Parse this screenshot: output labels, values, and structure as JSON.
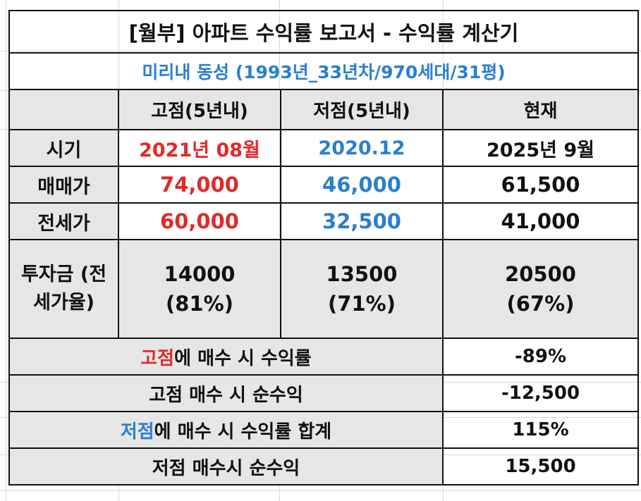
{
  "title": "[월부] 아파트 수익률 보고서 - 수익률 계산기",
  "subtitle": "미리내 동성 (1993년_33년차/970세대/31평)",
  "columns": [
    "",
    "고점(5년내)",
    "저점(5년내)",
    "현재"
  ],
  "rows": {
    "timing": {
      "label": "시기",
      "high": "2021년 08월",
      "low": "2020.12",
      "current": "2025년 9월"
    },
    "sale_price": {
      "label": "매매가",
      "high": "74,000",
      "low": "46,000",
      "current": "61,500"
    },
    "jeonse_price": {
      "label": "전세가",
      "high": "60,000",
      "low": "32,500",
      "current": "41,000"
    },
    "investment": {
      "label": "투자금 (전세가율)",
      "high": "14000",
      "high_ratio": "(81%)",
      "low": "13500",
      "low_ratio": "(71%)",
      "current": "20500",
      "current_ratio": "(67%)"
    }
  },
  "summary": [
    {
      "label_highlight": "고점",
      "label_rest": "에 매수 시 수익률",
      "value": "-89%"
    },
    {
      "label": "고점 매수 시 순수익",
      "value": "-12,500"
    },
    {
      "label_highlight": "저점",
      "label_rest": "에 매수 시 수익률 합계",
      "value": "115%"
    },
    {
      "label": "저점 매수시 순수익",
      "value": "15,500"
    }
  ],
  "colors": {
    "high": "#e02a2a",
    "low": "#2a7fcf",
    "header_bg": "#e6e6e6",
    "subtitle": "#2a7fcf"
  }
}
